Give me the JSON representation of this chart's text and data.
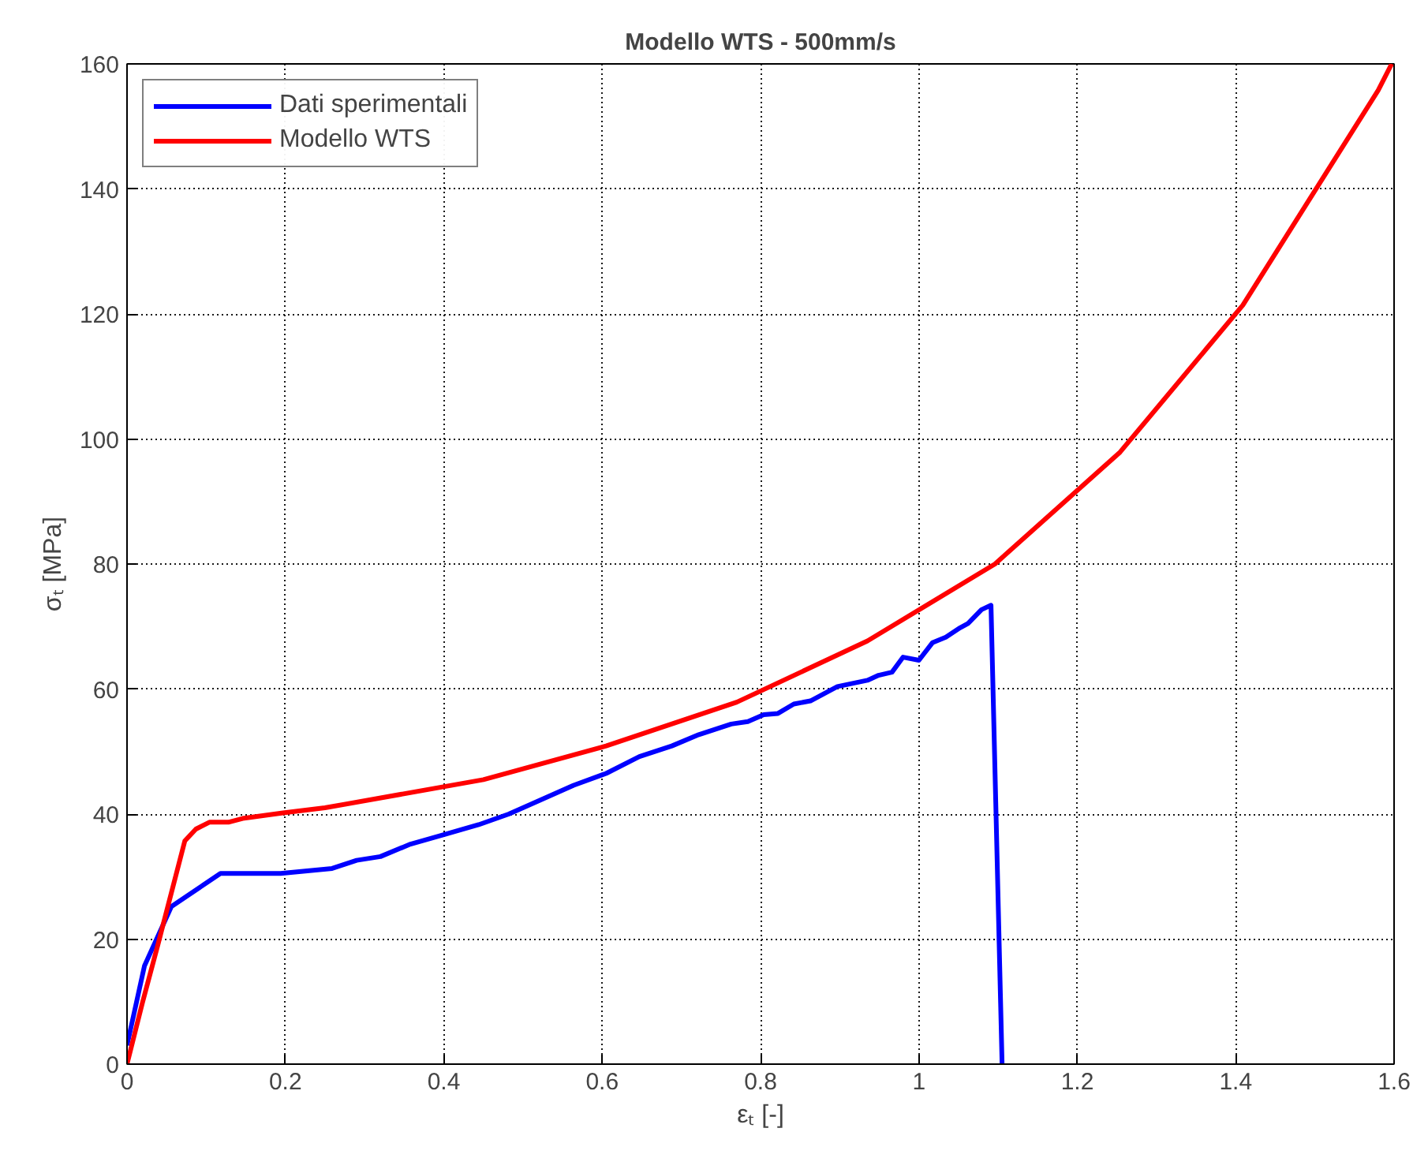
{
  "chart_data": {
    "type": "line",
    "title": "Modello WTS - 500mm/s",
    "xlabel": "εₜ [-]",
    "ylabel": "σₜ [MPa]",
    "xlim": [
      0,
      1.6
    ],
    "ylim": [
      0,
      160
    ],
    "xticks": [
      0,
      0.2,
      0.4,
      0.6,
      0.8,
      1,
      1.2,
      1.4,
      1.6
    ],
    "yticks": [
      0,
      20,
      40,
      60,
      80,
      100,
      120,
      140,
      160
    ],
    "grid": true,
    "legend": "top left",
    "line_style": "solid",
    "series": [
      {
        "name": "Dati sperimentali",
        "color": "#0000ff",
        "x": [
          0,
          0.022,
          0.056,
          0.118,
          0.194,
          0.259,
          0.29,
          0.32,
          0.358,
          0.4,
          0.444,
          0.482,
          0.564,
          0.605,
          0.647,
          0.688,
          0.722,
          0.763,
          0.784,
          0.804,
          0.822,
          0.842,
          0.863,
          0.897,
          0.935,
          0.949,
          0.966,
          0.98,
          1.0,
          1.017,
          1.034,
          1.052,
          1.062,
          1.079,
          1.091,
          1.105
        ],
        "values": [
          3,
          15.7,
          25.2,
          30.5,
          30.5,
          31.3,
          32.6,
          33.2,
          35.2,
          36.7,
          38.3,
          40,
          44.6,
          46.5,
          49.2,
          50.9,
          52.7,
          54.4,
          54.8,
          55.9,
          56.1,
          57.6,
          58.1,
          60.4,
          61.4,
          62.2,
          62.7,
          65.1,
          64.6,
          67.4,
          68.3,
          69.8,
          70.5,
          72.7,
          73.4,
          0
        ]
      },
      {
        "name": "Modello WTS",
        "color": "#ff0000",
        "x": [
          0,
          0.019,
          0.039,
          0.073,
          0.087,
          0.104,
          0.128,
          0.146,
          0.197,
          0.25,
          0.45,
          0.605,
          0.77,
          0.935,
          1.096,
          1.254,
          1.409,
          1.58,
          1.597
        ],
        "values": [
          0,
          9.6,
          19.1,
          35.7,
          37.6,
          38.7,
          38.7,
          39.3,
          40.2,
          41,
          45.5,
          50.9,
          57.9,
          67.7,
          80,
          97.9,
          121.4,
          155.8,
          160
        ]
      }
    ]
  }
}
